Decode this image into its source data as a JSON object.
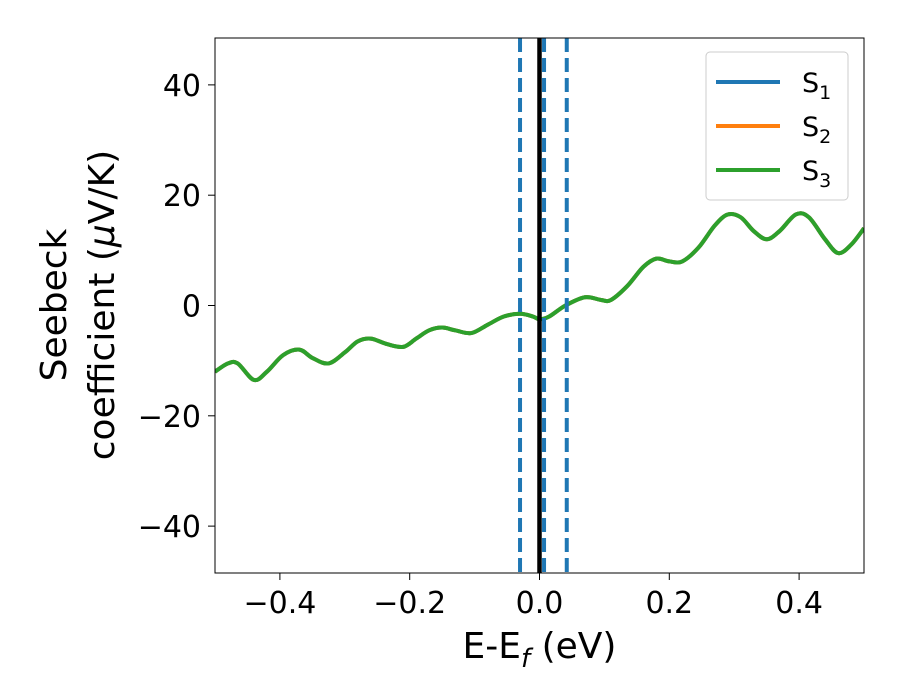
{
  "chart_data": {
    "type": "line",
    "xlabel": {
      "main": "E-E",
      "sub": "f",
      "suffix": " (eV)"
    },
    "ylabel": {
      "line1": "Seebeck",
      "line2_pre": "coefficient  (",
      "line2_mu": "μ",
      "line2_post": "V/K)"
    },
    "xlim": [
      -0.5,
      0.5
    ],
    "ylim": [
      -48.5,
      48.5
    ],
    "x_ticks": [
      -0.4,
      -0.2,
      0.0,
      0.2,
      0.4
    ],
    "x_tick_labels": [
      "−0.4",
      "−0.2",
      "0.0",
      "0.2",
      "0.4"
    ],
    "y_ticks": [
      -40,
      -20,
      0,
      20,
      40
    ],
    "y_tick_labels": [
      "−40",
      "−20",
      "0",
      "20",
      "40"
    ],
    "grid": false,
    "legend_position": "top-right",
    "series": [
      {
        "name": "S",
        "sub": "1",
        "color": "#1f77b4",
        "x": [
          -0.5,
          -0.48,
          -0.465,
          -0.44,
          -0.42,
          -0.395,
          -0.37,
          -0.35,
          -0.325,
          -0.3,
          -0.28,
          -0.26,
          -0.235,
          -0.21,
          -0.19,
          -0.17,
          -0.15,
          -0.13,
          -0.105,
          -0.08,
          -0.055,
          -0.03,
          -0.01,
          0.0,
          0.015,
          0.04,
          0.07,
          0.095,
          0.11,
          0.135,
          0.16,
          0.18,
          0.2,
          0.22,
          0.245,
          0.27,
          0.29,
          0.31,
          0.33,
          0.35,
          0.37,
          0.395,
          0.415,
          0.44,
          0.46,
          0.48,
          0.5
        ],
        "y": [
          -12,
          -10.5,
          -10.5,
          -13.5,
          -12,
          -9,
          -8,
          -9.5,
          -10.5,
          -8.5,
          -6.5,
          -6,
          -7,
          -7.5,
          -6,
          -4.5,
          -4,
          -4.5,
          -5,
          -3.5,
          -2,
          -1.5,
          -2,
          -2.5,
          -2,
          0,
          1.5,
          1,
          1,
          3.5,
          7,
          8.5,
          8,
          8,
          10.5,
          14.5,
          16.5,
          16,
          13.5,
          12,
          13.5,
          16.5,
          16,
          12,
          9.5,
          11,
          14
        ]
      },
      {
        "name": "S",
        "sub": "2",
        "color": "#ff7f0e",
        "x": [
          -0.5,
          -0.48,
          -0.465,
          -0.44,
          -0.42,
          -0.395,
          -0.37,
          -0.35,
          -0.325,
          -0.3,
          -0.28,
          -0.26,
          -0.235,
          -0.21,
          -0.19,
          -0.17,
          -0.15,
          -0.13,
          -0.105,
          -0.08,
          -0.055,
          -0.03,
          -0.01,
          0.0,
          0.015,
          0.04,
          0.07,
          0.095,
          0.11,
          0.135,
          0.16,
          0.18,
          0.2,
          0.22,
          0.245,
          0.27,
          0.29,
          0.31,
          0.33,
          0.35,
          0.37,
          0.395,
          0.415,
          0.44,
          0.46,
          0.48,
          0.5
        ],
        "y": [
          -12,
          -10.5,
          -10.5,
          -13.5,
          -12,
          -9,
          -8,
          -9.5,
          -10.5,
          -8.5,
          -6.5,
          -6,
          -7,
          -7.5,
          -6,
          -4.5,
          -4,
          -4.5,
          -5,
          -3.5,
          -2,
          -1.5,
          -2,
          -2.5,
          -2,
          0,
          1.5,
          1,
          1,
          3.5,
          7,
          8.5,
          8,
          8,
          10.5,
          14.5,
          16.5,
          16,
          13.5,
          12,
          13.5,
          16.5,
          16,
          12,
          9.5,
          11,
          14
        ]
      },
      {
        "name": "S",
        "sub": "3",
        "color": "#2ca02c",
        "x": [
          -0.5,
          -0.48,
          -0.465,
          -0.44,
          -0.42,
          -0.395,
          -0.37,
          -0.35,
          -0.325,
          -0.3,
          -0.28,
          -0.26,
          -0.235,
          -0.21,
          -0.19,
          -0.17,
          -0.15,
          -0.13,
          -0.105,
          -0.08,
          -0.055,
          -0.03,
          -0.01,
          0.0,
          0.015,
          0.04,
          0.07,
          0.095,
          0.11,
          0.135,
          0.16,
          0.18,
          0.2,
          0.22,
          0.245,
          0.27,
          0.29,
          0.31,
          0.33,
          0.35,
          0.37,
          0.395,
          0.415,
          0.44,
          0.46,
          0.48,
          0.5
        ],
        "y": [
          -12,
          -10.5,
          -10.5,
          -13.5,
          -12,
          -9,
          -8,
          -9.5,
          -10.5,
          -8.5,
          -6.5,
          -6,
          -7,
          -7.5,
          -6,
          -4.5,
          -4,
          -4.5,
          -5,
          -3.5,
          -2,
          -1.5,
          -2,
          -2.5,
          -2,
          0,
          1.5,
          1,
          1,
          3.5,
          7,
          8.5,
          8,
          8,
          10.5,
          14.5,
          16.5,
          16,
          13.5,
          12,
          13.5,
          16.5,
          16,
          12,
          9.5,
          11,
          14
        ]
      }
    ],
    "vlines": [
      {
        "x": -0.03,
        "style": "dashed",
        "color": "#1f77b4"
      },
      {
        "x": 0.007,
        "style": "dashed",
        "color": "#1f77b4"
      },
      {
        "x": 0.042,
        "style": "dashed",
        "color": "#1f77b4"
      },
      {
        "x": 0.0,
        "style": "solid",
        "color": "#000000"
      }
    ]
  }
}
